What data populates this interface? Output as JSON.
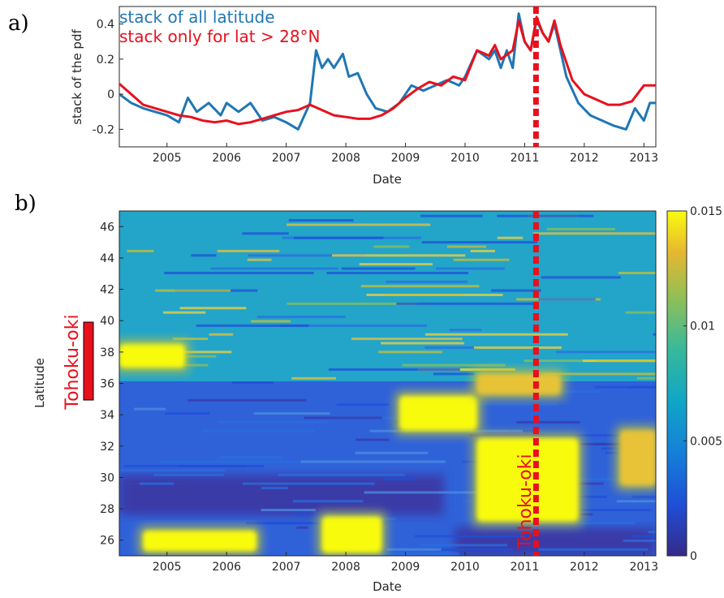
{
  "panels": {
    "a_label": "a)",
    "b_label": "b)"
  },
  "chart_data": [
    {
      "type": "line",
      "panel": "a",
      "xlabel": "Date",
      "ylabel": "stack of the pdf",
      "xlim": [
        2004.2,
        2013.2
      ],
      "ylim": [
        -0.3,
        0.5
      ],
      "xticks": [
        "2005",
        "2006",
        "2007",
        "2008",
        "2009",
        "2010",
        "2011",
        "2012",
        "2013"
      ],
      "yticks": [
        "-0.2",
        "0",
        "0.2",
        "0.4"
      ],
      "grid": false,
      "legend_placement": "top-left",
      "event_marker": {
        "x": 2011.19,
        "color": "#e8101c",
        "style": "dashed"
      },
      "series": [
        {
          "name": "stack of all latitude",
          "color": "#1f77b4",
          "x": [
            2004.2,
            2004.4,
            2004.6,
            2004.8,
            2005.0,
            2005.2,
            2005.35,
            2005.5,
            2005.7,
            2005.9,
            2006.0,
            2006.2,
            2006.4,
            2006.6,
            2006.8,
            2007.0,
            2007.2,
            2007.4,
            2007.5,
            2007.6,
            2007.7,
            2007.8,
            2007.95,
            2008.05,
            2008.2,
            2008.35,
            2008.5,
            2008.7,
            2008.9,
            2009.1,
            2009.3,
            2009.5,
            2009.7,
            2009.9,
            2010.0,
            2010.2,
            2010.4,
            2010.5,
            2010.6,
            2010.7,
            2010.8,
            2010.9,
            2011.0,
            2011.1,
            2011.2,
            2011.3,
            2011.4,
            2011.5,
            2011.6,
            2011.7,
            2011.9,
            2012.1,
            2012.3,
            2012.5,
            2012.7,
            2012.85,
            2013.0,
            2013.1,
            2013.2
          ],
          "y": [
            0.0,
            -0.05,
            -0.08,
            -0.1,
            -0.12,
            -0.16,
            -0.02,
            -0.1,
            -0.05,
            -0.12,
            -0.05,
            -0.1,
            -0.05,
            -0.15,
            -0.13,
            -0.16,
            -0.2,
            -0.05,
            0.25,
            0.15,
            0.2,
            0.15,
            0.23,
            0.1,
            0.12,
            0.0,
            -0.08,
            -0.1,
            -0.05,
            0.05,
            0.02,
            0.05,
            0.08,
            0.05,
            0.1,
            0.25,
            0.2,
            0.25,
            0.15,
            0.25,
            0.15,
            0.46,
            0.3,
            0.25,
            0.42,
            0.35,
            0.3,
            0.4,
            0.25,
            0.1,
            -0.05,
            -0.12,
            -0.15,
            -0.18,
            -0.2,
            -0.08,
            -0.15,
            -0.05,
            -0.05
          ]
        },
        {
          "name": "stack only for lat > 28°N",
          "color": "#e8101c",
          "x": [
            2004.2,
            2004.4,
            2004.6,
            2004.8,
            2005.0,
            2005.2,
            2005.4,
            2005.6,
            2005.8,
            2006.0,
            2006.2,
            2006.4,
            2006.6,
            2006.8,
            2007.0,
            2007.2,
            2007.4,
            2007.6,
            2007.8,
            2008.0,
            2008.2,
            2008.4,
            2008.6,
            2008.8,
            2009.0,
            2009.2,
            2009.4,
            2009.6,
            2009.8,
            2010.0,
            2010.2,
            2010.4,
            2010.5,
            2010.6,
            2010.8,
            2010.9,
            2011.0,
            2011.1,
            2011.2,
            2011.3,
            2011.4,
            2011.5,
            2011.6,
            2011.8,
            2012.0,
            2012.2,
            2012.4,
            2012.6,
            2012.8,
            2013.0,
            2013.2
          ],
          "y": [
            0.06,
            0.0,
            -0.06,
            -0.08,
            -0.1,
            -0.12,
            -0.13,
            -0.15,
            -0.16,
            -0.15,
            -0.17,
            -0.16,
            -0.14,
            -0.12,
            -0.1,
            -0.09,
            -0.06,
            -0.09,
            -0.12,
            -0.13,
            -0.14,
            -0.14,
            -0.12,
            -0.08,
            -0.02,
            0.03,
            0.07,
            0.05,
            0.1,
            0.08,
            0.25,
            0.22,
            0.28,
            0.2,
            0.25,
            0.42,
            0.3,
            0.25,
            0.44,
            0.35,
            0.3,
            0.42,
            0.28,
            0.08,
            0.0,
            -0.03,
            -0.06,
            -0.06,
            -0.04,
            0.05,
            0.05
          ]
        }
      ]
    },
    {
      "type": "heatmap",
      "panel": "b",
      "xlabel": "Date",
      "ylabel": "Latitude",
      "xlim": [
        2004.2,
        2013.2
      ],
      "ylim": [
        25,
        47
      ],
      "xticks": [
        "2005",
        "2006",
        "2007",
        "2008",
        "2009",
        "2010",
        "2011",
        "2012",
        "2013"
      ],
      "yticks": [
        "26",
        "28",
        "30",
        "32",
        "34",
        "36",
        "38",
        "40",
        "42",
        "44",
        "46"
      ],
      "colorbar": {
        "ticks": [
          "0",
          "0.005",
          "0.01",
          "0.015"
        ],
        "range": [
          0,
          0.015
        ],
        "colormap": "parula"
      },
      "annotations": [
        {
          "text": "Tohoku-oki",
          "position": "vertical, along event line",
          "color": "#e8101c"
        },
        {
          "text": "Tohoku-oki",
          "position": "left of y-axis, rupture zone 35–39.5°N",
          "color": "#e8101c"
        }
      ],
      "rupture_zone_lat": [
        35,
        39.5
      ],
      "event_marker": {
        "x": 2011.19,
        "color": "#e8101c",
        "style": "dashed"
      },
      "hotspots": [
        {
          "t": [
            2004.2,
            2005.3
          ],
          "lat": [
            37,
            38.5
          ],
          "level": "high"
        },
        {
          "t": [
            2008.9,
            2010.2
          ],
          "lat": [
            33,
            35.2
          ],
          "level": "high"
        },
        {
          "t": [
            2010.2,
            2011.9
          ],
          "lat": [
            27.2,
            32.5
          ],
          "level": "high"
        },
        {
          "t": [
            2007.6,
            2008.6
          ],
          "lat": [
            25.2,
            27.5
          ],
          "level": "high"
        },
        {
          "t": [
            2004.6,
            2006.5
          ],
          "lat": [
            25.3,
            26.6
          ],
          "level": "high"
        },
        {
          "t": [
            2010.2,
            2011.6
          ],
          "lat": [
            35.3,
            36.6
          ],
          "level": "medium"
        },
        {
          "t": [
            2012.6,
            2013.2
          ],
          "lat": [
            29.5,
            33
          ],
          "level": "medium"
        }
      ]
    }
  ]
}
